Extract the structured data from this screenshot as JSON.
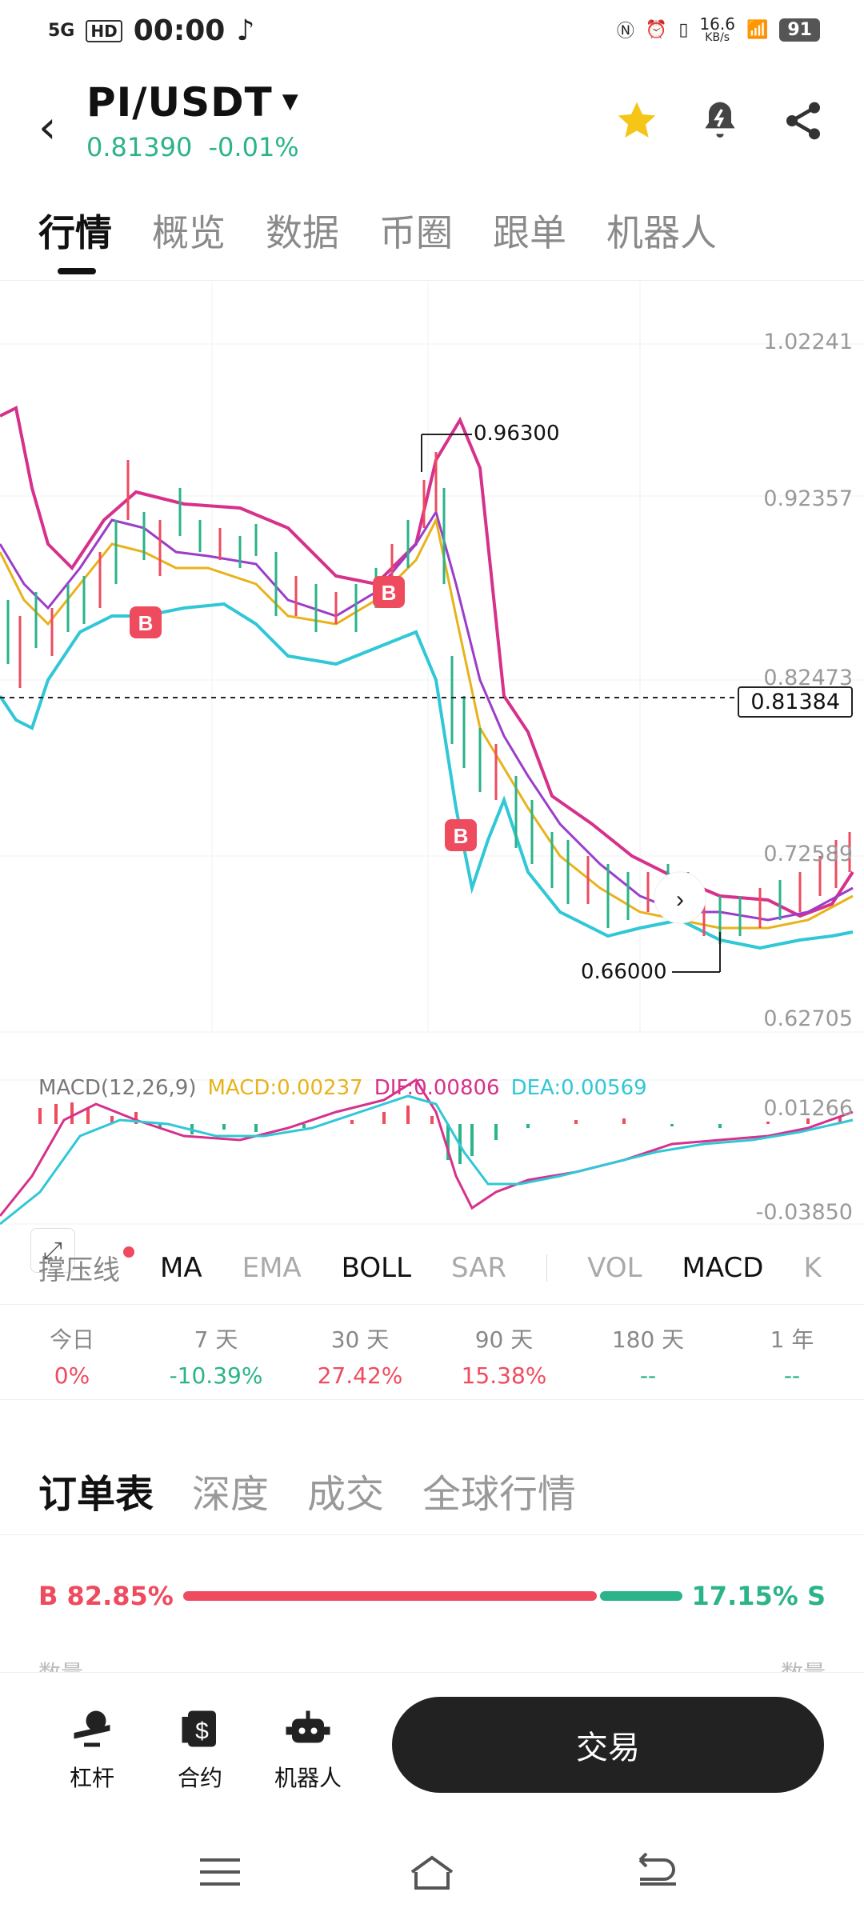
{
  "status_bar": {
    "signal": "5G",
    "hd": "HD",
    "time": "00:00",
    "speed": "16.6",
    "speed_unit": "KB/s",
    "battery": "91"
  },
  "header": {
    "pair": "PI/USDT",
    "price": "0.81390",
    "change": "-0.01%"
  },
  "tabs": [
    "行情",
    "概览",
    "数据",
    "币圈",
    "跟单",
    "机器人"
  ],
  "chart": {
    "axis_labels": [
      "1.02241",
      "0.92357",
      "0.82473",
      "0.72589",
      "0.62705"
    ],
    "current_price": "0.81384",
    "high_marker": "0.96300",
    "low_marker": "0.66000",
    "buy_marker": "B",
    "macd_legend": {
      "title": "MACD(12,26,9)",
      "macd": "MACD:0.00237",
      "dif": "DIF:0.00806",
      "dea": "DEA:0.00569"
    },
    "macd_axis": [
      "0.01266",
      "-0.03850"
    ],
    "colors": {
      "upper": "#d6318b",
      "middle_a": "#e8b21a",
      "middle_b": "#9b3dc8",
      "lower": "#30c7d6",
      "bull": "#2bb38a",
      "bear": "#ef4b5f"
    }
  },
  "indicators": {
    "support": "撑压线",
    "items": [
      "MA",
      "EMA",
      "BOLL",
      "SAR",
      "VOL",
      "MACD",
      "K"
    ]
  },
  "stats": [
    {
      "label": "今日",
      "value": "0%"
    },
    {
      "label": "7 天",
      "value": "-10.39%"
    },
    {
      "label": "30 天",
      "value": "27.42%"
    },
    {
      "label": "90 天",
      "value": "15.38%"
    },
    {
      "label": "180 天",
      "value": "--"
    },
    {
      "label": "1 年",
      "value": "--"
    }
  ],
  "book_tabs": [
    "订单表",
    "深度",
    "成交",
    "全球行情"
  ],
  "ratio": {
    "buy": "B 82.85%",
    "sell": "17.15% S",
    "buy_fraction": 0.8285
  },
  "peek": {
    "left": "数量",
    "right": "数量"
  },
  "bottom_nav": {
    "items": [
      "杠杆",
      "合约",
      "机器人"
    ],
    "trade": "交易"
  }
}
